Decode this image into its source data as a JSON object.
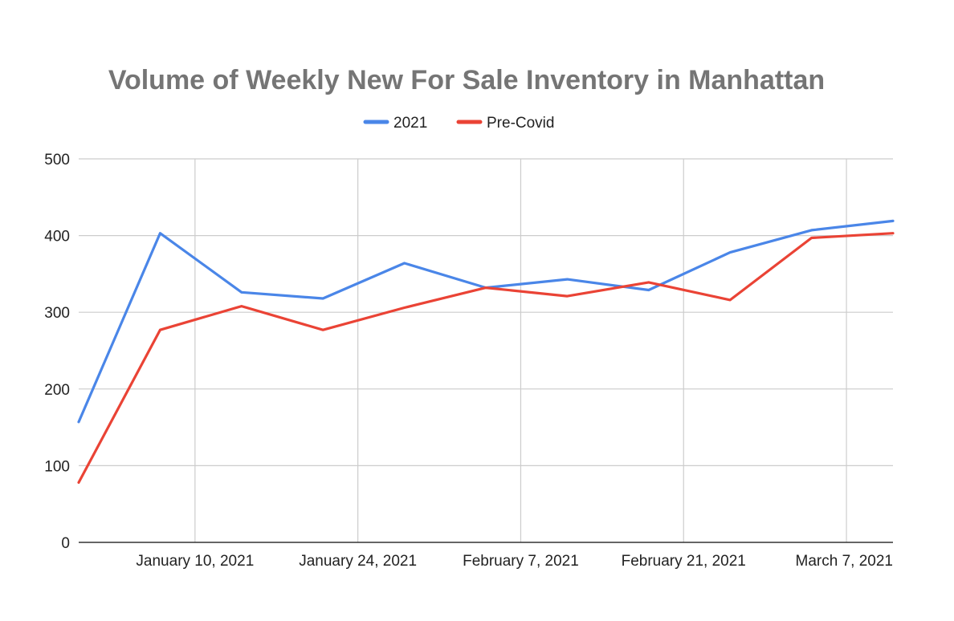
{
  "chart_data": {
    "type": "line",
    "title": "Volume of Weekly New For Sale Inventory in Manhattan",
    "xlabel": "",
    "ylabel": "",
    "x": [
      "2020-12-31",
      "2021-01-07",
      "2021-01-14",
      "2021-01-21",
      "2021-01-28",
      "2021-02-04",
      "2021-02-11",
      "2021-02-18",
      "2021-02-25",
      "2021-03-04",
      "2021-03-11"
    ],
    "x_tick_labels": [
      "January 10, 2021",
      "January 24, 2021",
      "February 7, 2021",
      "February 21, 2021",
      "March 7, 2021"
    ],
    "x_tick_dates": [
      "2021-01-10",
      "2021-01-24",
      "2021-02-07",
      "2021-02-21",
      "2021-03-07"
    ],
    "x_range": [
      "2020-12-31",
      "2021-03-11"
    ],
    "ylim": [
      0,
      500
    ],
    "y_ticks": [
      0,
      100,
      200,
      300,
      400,
      500
    ],
    "grid": true,
    "legend_position": "top",
    "series": [
      {
        "name": "2021",
        "color": "#4a86e8",
        "values": [
          157,
          403,
          326,
          318,
          364,
          332,
          343,
          329,
          378,
          407,
          419
        ]
      },
      {
        "name": "Pre-Covid",
        "color": "#ea4335",
        "values": [
          78,
          277,
          308,
          277,
          306,
          332,
          321,
          339,
          316,
          397,
          403
        ]
      }
    ]
  }
}
